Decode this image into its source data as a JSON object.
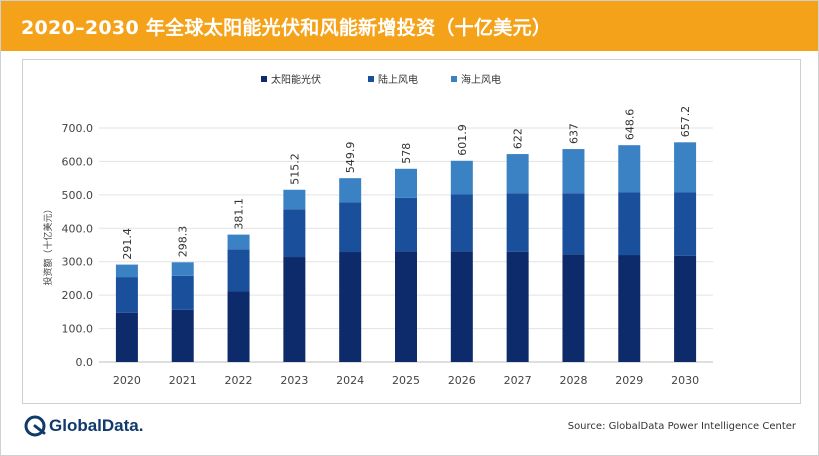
{
  "header": {
    "title": "2020–2030 年全球太阳能光伏和风能新增投资（十亿美元）"
  },
  "footer": {
    "brand": "GlobalData.",
    "source": "Source: GlobalData Power Intelligence Center"
  },
  "colors": {
    "header_bg": "#f5a21b",
    "solar": "#0d2b6b",
    "onshore": "#1a4f9c",
    "offshore": "#3b82c4"
  },
  "chart_data": {
    "type": "bar",
    "stacked": true,
    "title": "2020–2030 年全球太阳能光伏和风能新增投资（十亿美元）",
    "xlabel": "",
    "ylabel": "投资额（十亿美元）",
    "ylim": [
      0,
      700
    ],
    "yticks": [
      "0.0",
      "100.0",
      "200.0",
      "300.0",
      "400.0",
      "500.0",
      "600.0",
      "700.0"
    ],
    "grid": true,
    "legend_position": "top-center",
    "categories": [
      "2020",
      "2021",
      "2022",
      "2023",
      "2024",
      "2025",
      "2026",
      "2027",
      "2028",
      "2029",
      "2030"
    ],
    "series": [
      {
        "name": "太阳能光伏",
        "color": "#0d2b6b",
        "values": [
          147,
          156,
          211,
          314,
          329,
          331,
          331,
          330,
          322,
          320,
          318
        ]
      },
      {
        "name": "陆上风电",
        "color": "#1a4f9c",
        "values": [
          107,
          102,
          126,
          143,
          149,
          160,
          170,
          175,
          183,
          187,
          189
        ]
      },
      {
        "name": "海上风电",
        "color": "#3b82c4",
        "values": [
          37.4,
          40.3,
          44.1,
          58.2,
          71.9,
          87,
          100.9,
          117,
          132,
          141.6,
          150.2
        ]
      }
    ],
    "totals": [
      "291.4",
      "298.3",
      "381.1",
      "515.2",
      "549.9",
      "578",
      "601.9",
      "622",
      "637",
      "648.6",
      "657.2"
    ]
  }
}
